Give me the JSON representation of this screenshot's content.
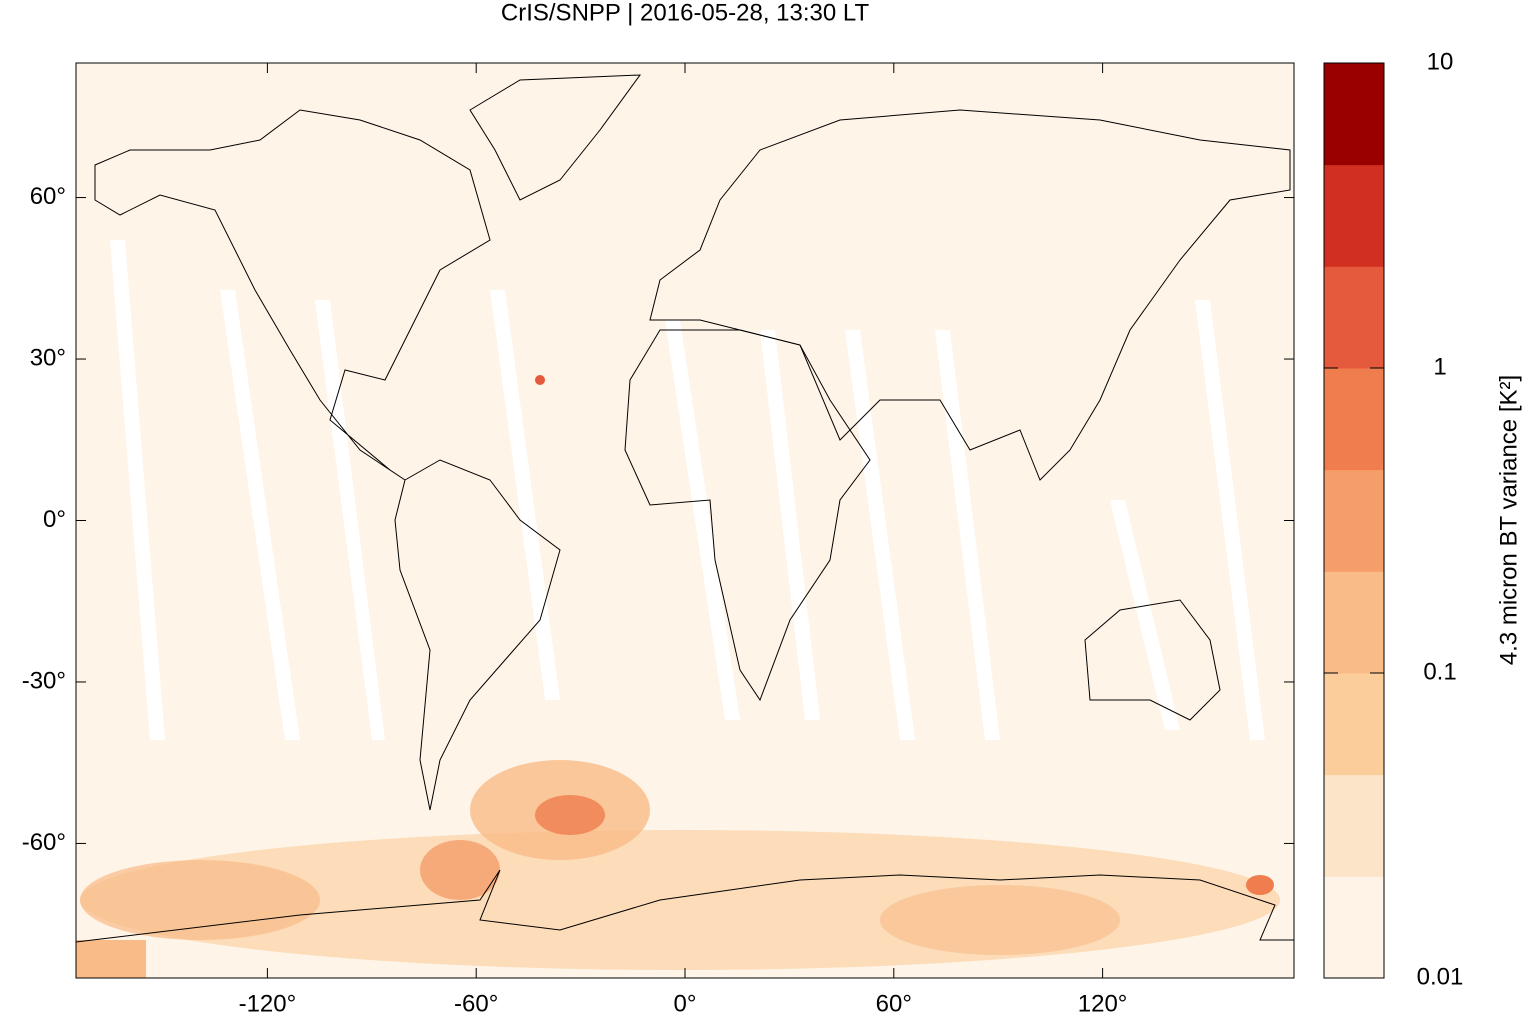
{
  "chart_data": {
    "type": "map",
    "title": "CrIS/SNPP | 2016-05-28, 13:30 LT",
    "xlim": [
      -175,
      175
    ],
    "ylim": [
      -85,
      85
    ],
    "xticks": [
      {
        "value": -120,
        "label": "-120°"
      },
      {
        "value": -60,
        "label": "-60°"
      },
      {
        "value": 0,
        "label": "0°"
      },
      {
        "value": 60,
        "label": "60°"
      },
      {
        "value": 120,
        "label": "120°"
      }
    ],
    "yticks": [
      {
        "value": 60,
        "label": "60°"
      },
      {
        "value": 30,
        "label": "30°"
      },
      {
        "value": 0,
        "label": "0°"
      },
      {
        "value": -30,
        "label": "-30°"
      },
      {
        "value": -60,
        "label": "-60°"
      }
    ],
    "colorbar": {
      "label": "4.3 micron BT variance [K²]",
      "log": true,
      "lim": [
        0.01,
        10
      ],
      "ticks": [
        0.01,
        0.1,
        1,
        10
      ],
      "colors": [
        "#fef3e6",
        "#fce4c8",
        "#fbcd9b",
        "#f9bb87",
        "#f59e69",
        "#ef7d4e",
        "#e5593d",
        "#d12f21",
        "#990000"
      ]
    }
  }
}
